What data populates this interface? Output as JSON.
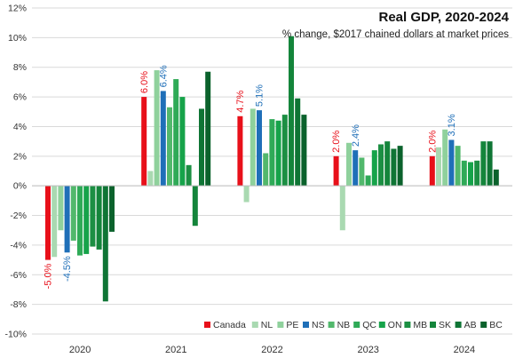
{
  "chart_data": {
    "type": "bar",
    "title": "Real GDP, 2020-2024",
    "subtitle": "% change, $2017 chained dollars at market prices",
    "xlabel": "",
    "ylabel": "",
    "ylim": [
      -10,
      12
    ],
    "yticks": [
      -10,
      -8,
      -6,
      -4,
      -2,
      0,
      2,
      4,
      6,
      8,
      10,
      12
    ],
    "ytick_labels": [
      "-10%",
      "-8%",
      "-6%",
      "-4%",
      "-2%",
      "0%",
      "2%",
      "4%",
      "6%",
      "8%",
      "10%",
      "12%"
    ],
    "grid": true,
    "legend_position": "bottom-right",
    "categories": [
      "2020",
      "2021",
      "2022",
      "2023",
      "2024"
    ],
    "series": [
      {
        "name": "Canada",
        "color": "#e8101a",
        "values": [
          -5.0,
          6.0,
          4.7,
          2.0,
          2.0
        ]
      },
      {
        "name": "NL",
        "color": "#a9d9b1",
        "values": [
          -4.8,
          1.0,
          -1.1,
          -3.0,
          2.6
        ]
      },
      {
        "name": "PE",
        "color": "#8fd19c",
        "values": [
          -3.0,
          7.8,
          5.2,
          2.9,
          3.8
        ]
      },
      {
        "name": "NS",
        "color": "#1f6fb8",
        "values": [
          -4.5,
          6.4,
          5.1,
          2.4,
          3.1
        ]
      },
      {
        "name": "NB",
        "color": "#52b86c",
        "values": [
          -3.7,
          5.3,
          2.2,
          1.9,
          2.7
        ]
      },
      {
        "name": "QC",
        "color": "#2faa57",
        "values": [
          -4.7,
          7.2,
          4.5,
          0.7,
          1.7
        ]
      },
      {
        "name": "ON",
        "color": "#16a34a",
        "values": [
          -4.6,
          6.0,
          4.4,
          2.4,
          1.6
        ]
      },
      {
        "name": "MB",
        "color": "#1c8f43",
        "values": [
          -4.1,
          1.4,
          4.8,
          2.8,
          1.7
        ]
      },
      {
        "name": "SK",
        "color": "#14853b",
        "values": [
          -4.3,
          -2.7,
          10.1,
          3.0,
          3.0
        ]
      },
      {
        "name": "AB",
        "color": "#0f7535",
        "values": [
          -7.8,
          5.2,
          5.9,
          2.5,
          3.0
        ]
      },
      {
        "name": "BC",
        "color": "#0b622c",
        "values": [
          -3.1,
          7.7,
          4.8,
          2.7,
          1.1
        ]
      }
    ],
    "data_labels": [
      {
        "series": "Canada",
        "category": "2020",
        "text": "-5.0%"
      },
      {
        "series": "NS",
        "category": "2020",
        "text": "-4.5%"
      },
      {
        "series": "Canada",
        "category": "2021",
        "text": "6.0%"
      },
      {
        "series": "NS",
        "category": "2021",
        "text": "6.4%"
      },
      {
        "series": "Canada",
        "category": "2022",
        "text": "4.7%"
      },
      {
        "series": "NS",
        "category": "2022",
        "text": "5.1%"
      },
      {
        "series": "Canada",
        "category": "2023",
        "text": "2.0%"
      },
      {
        "series": "NS",
        "category": "2023",
        "text": "2.4%"
      },
      {
        "series": "Canada",
        "category": "2024",
        "text": "2.0%"
      },
      {
        "series": "NS",
        "category": "2024",
        "text": "3.1%"
      }
    ]
  }
}
